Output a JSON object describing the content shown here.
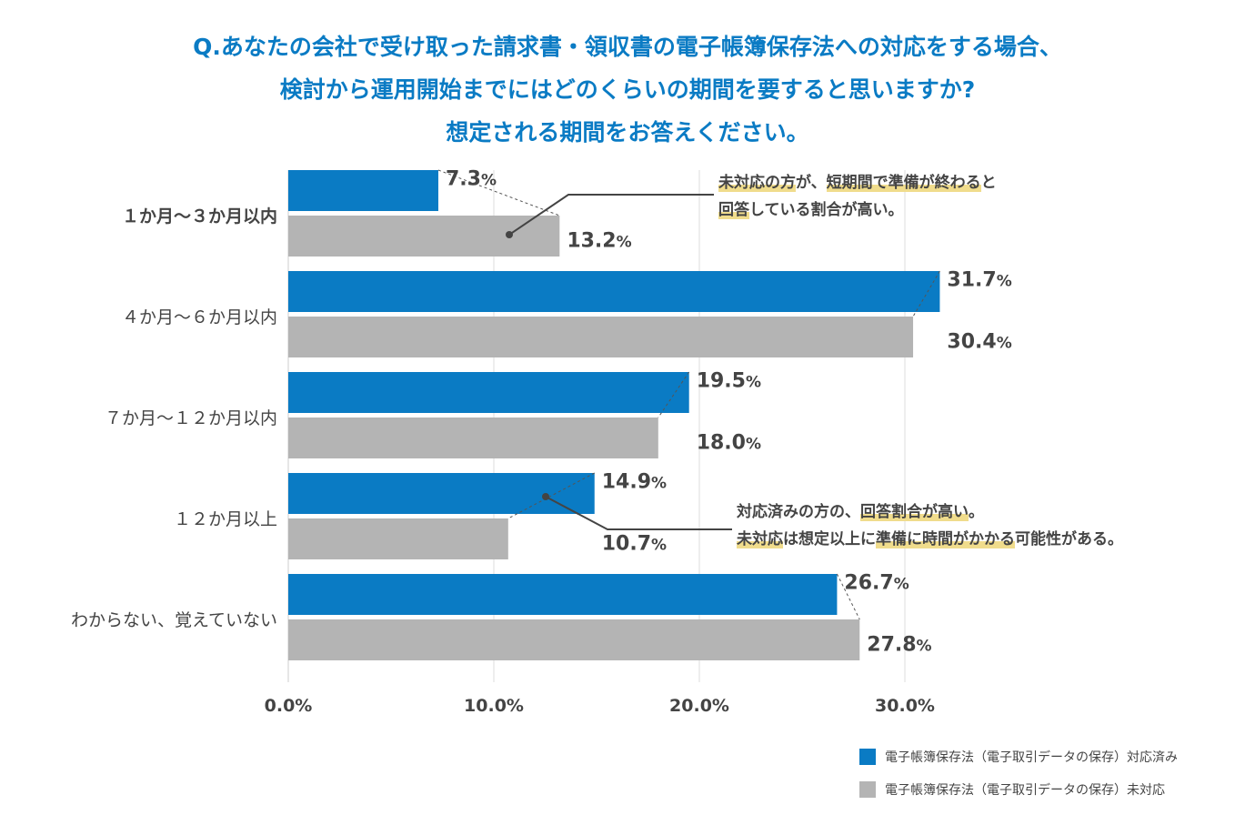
{
  "title": {
    "line1": "Q.あなたの会社で受け取った請求書・領収書の電子帳簿保存法への対応をする場合、",
    "line2": "検討から運用開始までにはどのくらいの期間を要すると思いますか?",
    "line3": "想定される期間をお答えください。"
  },
  "chart_data": {
    "type": "bar",
    "orientation": "horizontal",
    "categories": [
      "１か月〜３か月以内",
      "４か月〜６か月以内",
      "７か月〜１２か月以内",
      "１２か月以上",
      "わからない、覚えていない"
    ],
    "series": [
      {
        "name": "電子帳簿保存法（電子取引データの保存）対応済み",
        "color": "#0a7bc4",
        "values": [
          7.3,
          31.7,
          19.5,
          14.9,
          26.7
        ],
        "labels": [
          "7.3%",
          "31.7%",
          "19.5%",
          "14.9%",
          "26.7%"
        ]
      },
      {
        "name": "電子帳簿保存法（電子取引データの保存）未対応",
        "color": "#b4b4b4",
        "values": [
          13.2,
          30.4,
          18.0,
          10.7,
          27.8
        ],
        "labels": [
          "13.2%",
          "30.4%",
          "18.0%",
          "10.7%",
          "27.8%"
        ]
      }
    ],
    "xticks": [
      "0.0%",
      "10.0%",
      "20.0%",
      "30.0%"
    ],
    "xlim": [
      0,
      35
    ],
    "grid": true,
    "legend": "bottom-right"
  },
  "annotations": [
    {
      "segments": [
        {
          "t": "未対応の方",
          "hl": true
        },
        {
          "t": "が、",
          "hl": false
        },
        {
          "t": "短期間で準備が終わる",
          "hl": true
        },
        {
          "t": "と",
          "hl": false
        }
      ],
      "segments2": [
        {
          "t": "回答",
          "hl": true
        },
        {
          "t": "している割合が高い。",
          "hl": false
        }
      ]
    },
    {
      "segments": [
        {
          "t": "対応済みの方の、",
          "hl": false
        },
        {
          "t": "回答割合が高い",
          "hl": true
        },
        {
          "t": "。",
          "hl": false
        }
      ],
      "segments2": [
        {
          "t": "未対応",
          "hl": true
        },
        {
          "t": "は想定以上に",
          "hl": false
        },
        {
          "t": "準備に時間がかかる",
          "hl": true
        },
        {
          "t": "可能性がある。",
          "hl": false
        }
      ]
    }
  ]
}
